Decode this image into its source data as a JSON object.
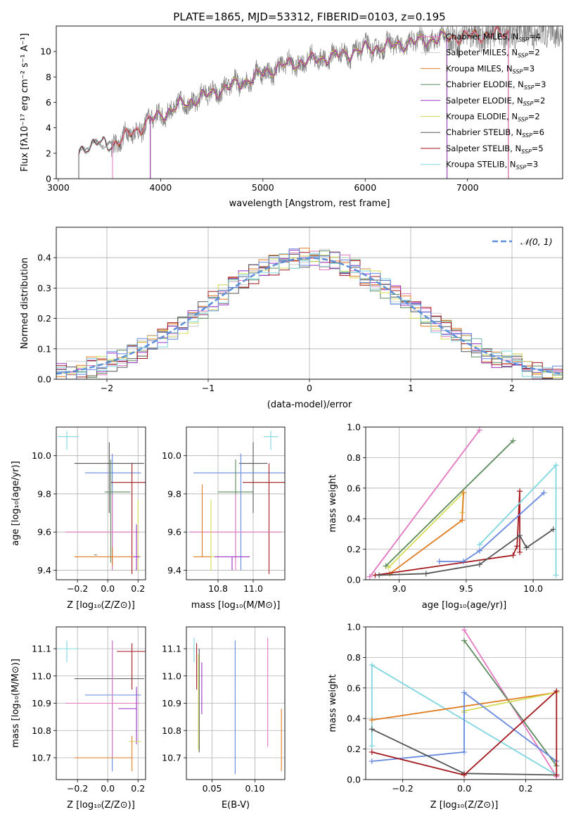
{
  "page_title": "PLATE=1865, MJD=53312, FIBERID=0103, z=0.195",
  "colors": {
    "chabrier_miles": "#e377c2",
    "salpeter_miles": "#cccccc",
    "kroupa_miles": "#e07b20",
    "chabrier_elodie": "#5b8a5b",
    "salpeter_elodie": "#9b30c8",
    "kroupa_elodie": "#d6dc55",
    "chabrier_stelib": "#555555",
    "salpeter_stelib": "#a3191e",
    "kroupa_stelib": "#7fd6df",
    "extra_blue": "#6688dd",
    "gaussian": "#5b8fd6",
    "data_grey": "#808080"
  },
  "chart_data": [
    {
      "id": "spectrum",
      "type": "line",
      "xlabel": "wavelength [Angstrom, rest frame]",
      "ylabel": "Flux [fλ10⁻¹⁷ erg cm⁻² s⁻¹ A⁻¹]",
      "xlim": [
        2980,
        7930
      ],
      "ylim": [
        0,
        12
      ],
      "xticks": [
        "3000",
        "4000",
        "5000",
        "6000",
        "7000"
      ],
      "yticks": [
        "0",
        "2",
        "4",
        "6",
        "8",
        "10"
      ],
      "legend_position": "top-right",
      "legend": [
        {
          "label": "Chabrier MILES, N",
          "sub": "SSP",
          "suffix": "=4",
          "color": "chabrier_miles"
        },
        {
          "label": "Salpeter MILES, N",
          "sub": "SSP",
          "suffix": "=2",
          "color": "salpeter_miles"
        },
        {
          "label": "Kroupa MILES, N",
          "sub": "SSP",
          "suffix": "=3",
          "color": "kroupa_miles"
        },
        {
          "label": "Chabrier ELODIE, N",
          "sub": "SSP",
          "suffix": "=3",
          "color": "chabrier_elodie"
        },
        {
          "label": "Salpeter ELODIE, N",
          "sub": "SSP",
          "suffix": "=2",
          "color": "salpeter_elodie"
        },
        {
          "label": "Kroupa ELODIE, N",
          "sub": "SSP",
          "suffix": "=2",
          "color": "kroupa_elodie"
        },
        {
          "label": "Chabrier STELIB, N",
          "sub": "SSP",
          "suffix": "=6",
          "color": "chabrier_stelib"
        },
        {
          "label": "Salpeter STELIB, N",
          "sub": "SSP",
          "suffix": "=5",
          "color": "salpeter_stelib"
        },
        {
          "label": "Kroupa STELIB, N",
          "sub": "SSP",
          "suffix": "=3",
          "color": "kroupa_stelib"
        }
      ],
      "continuum": {
        "x": [
          3200,
          3300,
          3400,
          3500,
          3600,
          3700,
          3800,
          3900,
          4000,
          4200,
          4400,
          4600,
          4800,
          5000,
          5200,
          5400,
          5600,
          5800,
          6000,
          6200,
          6400,
          6600,
          6800,
          7000,
          7200,
          7400
        ],
        "y": [
          2.0,
          2.7,
          2.8,
          2.6,
          3.0,
          3.5,
          4.0,
          4.6,
          5.0,
          5.8,
          6.4,
          7.0,
          7.6,
          8.3,
          8.9,
          9.2,
          9.5,
          9.8,
          10.2,
          10.4,
          10.6,
          10.9,
          11.1,
          11.2,
          11.3,
          11.5
        ]
      },
      "model_ranges": [
        {
          "color": "kroupa_stelib",
          "start": 3200,
          "end": 6800
        },
        {
          "color": "salpeter_stelib",
          "start": 3200,
          "end": 7400
        },
        {
          "color": "chabrier_stelib",
          "start": 3200,
          "end": 7400
        },
        {
          "color": "kroupa_miles",
          "start": 3530,
          "end": 7400
        },
        {
          "color": "chabrier_miles",
          "start": 3530,
          "end": 7400
        },
        {
          "color": "chabrier_elodie",
          "start": 3900,
          "end": 6800
        },
        {
          "color": "kroupa_elodie",
          "start": 3900,
          "end": 6800
        },
        {
          "color": "salpeter_elodie",
          "start": 3900,
          "end": 6800
        }
      ]
    },
    {
      "id": "residual_distribution",
      "type": "line",
      "xlabel": "(data-model)/error",
      "ylabel": "Normed distribution",
      "xlim": [
        -2.5,
        2.5
      ],
      "ylim": [
        0,
        0.5
      ],
      "xticks": [
        "−2",
        "−1",
        "0",
        "1",
        "2"
      ],
      "yticks": [
        "0.0",
        "0.1",
        "0.2",
        "0.3",
        "0.4"
      ],
      "legend_position": "top-right",
      "gaussian_label": "𝒩(0, 1)",
      "bin_width": 0.1
    },
    {
      "id": "age_vs_Z",
      "type": "scatter",
      "xlabel": "Z [log₁₀(Z/Z⊙)]",
      "ylabel": "age  [log₁₀(age/yr)]",
      "xlim": [
        -0.34,
        0.25
      ],
      "ylim": [
        9.35,
        10.15
      ],
      "xticks": [
        "−0.2",
        "0.0",
        "0.2"
      ],
      "yticks": [
        "9.4",
        "9.6",
        "9.8",
        "10.0"
      ],
      "points": [
        {
          "color": "kroupa_stelib",
          "x": -0.27,
          "xerr": [
            0.06,
            0.08
          ],
          "y": 10.1,
          "yerr": [
            0.07,
            0.03
          ]
        },
        {
          "color": "chabrier_stelib",
          "x": 0.01,
          "xerr": [
            0.23,
            0.23
          ],
          "y": 9.96,
          "yerr": [
            0.26,
            0.11
          ]
        },
        {
          "color": "extra_blue",
          "x": 0.03,
          "xerr": [
            0.18,
            0.19
          ],
          "y": 9.91,
          "yerr": [
            0.51,
            0.1
          ]
        },
        {
          "color": "salpeter_stelib",
          "x": 0.16,
          "xerr": [
            0.14,
            0.09
          ],
          "y": 9.86,
          "yerr": [
            0.48,
            0.1
          ]
        },
        {
          "color": "chabrier_elodie",
          "x": 0.02,
          "xerr": [
            0.04,
            0.13
          ],
          "y": 9.81,
          "yerr": [
            0.37,
            0.17
          ]
        },
        {
          "color": "chabrier_miles",
          "x": 0.03,
          "xerr": [
            0.31,
            0.18
          ],
          "y": 9.6,
          "yerr": [
            0.2,
            0.2
          ]
        },
        {
          "color": "kroupa_elodie",
          "x": 0.2,
          "xerr": [
            0.06,
            0.02
          ],
          "y": 9.47,
          "yerr": [
            0.07,
            0.3
          ]
        },
        {
          "color": "kroupa_miles",
          "x": 0.03,
          "xerr": [
            0.25,
            0.14
          ],
          "y": 9.47,
          "yerr": [
            0.05,
            0.05
          ]
        },
        {
          "color": "salpeter_elodie",
          "x": 0.19,
          "xerr": [
            0.02,
            0.02
          ],
          "y": 9.47,
          "yerr": [
            0.07,
            0.17
          ]
        },
        {
          "color": "data_grey",
          "x": -0.08,
          "xerr": [
            0.01,
            0.01
          ],
          "y": 9.48,
          "yerr": [
            0.0,
            0.0
          ]
        }
      ]
    },
    {
      "id": "age_vs_mass",
      "type": "scatter",
      "xlabel": "mass [log₁₀(M/M⊙)]",
      "ylabel": "",
      "xlim": [
        10.62,
        11.18
      ],
      "ylim": [
        9.35,
        10.15
      ],
      "xticks": [
        "10.8",
        "11.0"
      ],
      "yticks": [
        "9.4",
        "9.6",
        "9.8",
        "10.0"
      ],
      "points": [
        {
          "color": "kroupa_stelib",
          "x": 11.1,
          "xerr": [
            0.04,
            0.04
          ],
          "y": 10.1,
          "yerr": [
            0.07,
            0.03
          ]
        },
        {
          "color": "chabrier_stelib",
          "x": 11.0,
          "xerr": [
            0.08,
            0.08
          ],
          "y": 9.96,
          "yerr": [
            0.26,
            0.11
          ]
        },
        {
          "color": "extra_blue",
          "x": 10.93,
          "xerr": [
            0.27,
            0.27
          ],
          "y": 9.91,
          "yerr": [
            0.51,
            0.1
          ]
        },
        {
          "color": "salpeter_stelib",
          "x": 11.09,
          "xerr": [
            0.15,
            0.15
          ],
          "y": 9.86,
          "yerr": [
            0.48,
            0.1
          ]
        },
        {
          "color": "chabrier_elodie",
          "x": 10.9,
          "xerr": [
            0.1,
            0.1
          ],
          "y": 9.81,
          "yerr": [
            0.37,
            0.17
          ]
        },
        {
          "color": "chabrier_miles",
          "x": 10.9,
          "xerr": [
            0.26,
            0.26
          ],
          "y": 9.6,
          "yerr": [
            0.2,
            0.2
          ]
        },
        {
          "color": "kroupa_elodie",
          "x": 10.76,
          "xerr": [
            0.02,
            0.02
          ],
          "y": 9.47,
          "yerr": [
            0.07,
            0.3
          ]
        },
        {
          "color": "kroupa_miles",
          "x": 10.71,
          "xerr": [
            0.05,
            0.05
          ],
          "y": 9.47,
          "yerr": [
            0.0,
            0.38
          ]
        },
        {
          "color": "salpeter_elodie",
          "x": 10.88,
          "xerr": [
            0.1,
            0.1
          ],
          "y": 9.47,
          "yerr": [
            0.07,
            0.0
          ]
        }
      ]
    },
    {
      "id": "weight_vs_age",
      "type": "line",
      "xlabel": "age  [log₁₀(age/yr)]",
      "ylabel": "mass weight",
      "xlim": [
        8.75,
        10.22
      ],
      "ylim": [
        0,
        1
      ],
      "xticks": [
        "9.0",
        "9.5",
        "10.0"
      ],
      "yticks": [
        "0.0",
        "0.2",
        "0.4",
        "0.6",
        "0.8",
        "1.0"
      ],
      "series": [
        {
          "color": "chabrier_miles",
          "x": [
            8.78,
            9.6
          ],
          "y": [
            0.02,
            0.98
          ]
        },
        {
          "color": "chabrier_elodie",
          "x": [
            8.9,
            9.85
          ],
          "y": [
            0.09,
            0.91
          ]
        },
        {
          "color": "kroupa_elodie",
          "x": [
            8.92,
            9.48,
            9.47
          ],
          "y": [
            0.08,
            0.57,
            0.44
          ]
        },
        {
          "color": "kroupa_miles",
          "x": [
            8.93,
            9.47,
            9.48
          ],
          "y": [
            0.04,
            0.39,
            0.57
          ]
        },
        {
          "color": "salpeter_stelib",
          "x": [
            8.82,
            9.85,
            9.88,
            9.9,
            9.9
          ],
          "y": [
            0.03,
            0.16,
            0.22,
            0.58,
            0.18
          ]
        },
        {
          "color": "chabrier_stelib",
          "x": [
            8.85,
            9.2,
            9.6,
            9.9,
            9.95,
            10.15
          ],
          "y": [
            0.03,
            0.04,
            0.1,
            0.29,
            0.21,
            0.33
          ]
        },
        {
          "color": "extra_blue",
          "x": [
            9.3,
            9.48,
            9.6,
            10.08
          ],
          "y": [
            0.12,
            0.12,
            0.19,
            0.57
          ]
        },
        {
          "color": "kroupa_stelib",
          "x": [
            9.6,
            10.17,
            10.17
          ],
          "y": [
            0.23,
            0.75,
            0.03
          ]
        }
      ]
    },
    {
      "id": "mass_vs_Z",
      "type": "scatter",
      "xlabel": "Z [log₁₀(Z/Z⊙)]",
      "ylabel": "mass [log₁₀(M/M⊙)]",
      "xlim": [
        -0.34,
        0.25
      ],
      "ylim": [
        10.62,
        11.18
      ],
      "xticks": [
        "−0.2",
        "0.0",
        "0.2"
      ],
      "yticks": [
        "10.7",
        "10.8",
        "10.9",
        "11.0",
        "11.1"
      ],
      "points": [
        {
          "color": "kroupa_stelib",
          "x": -0.27,
          "xerr": [
            0.06,
            0.08
          ],
          "y": 11.1,
          "yerr": [
            0.05,
            0.03
          ]
        },
        {
          "color": "salpeter_stelib",
          "x": 0.16,
          "xerr": [
            0.1,
            0.09
          ],
          "y": 11.09,
          "yerr": [
            0.14,
            0.03
          ]
        },
        {
          "color": "chabrier_stelib",
          "x": 0.01,
          "xerr": [
            0.23,
            0.23
          ],
          "y": 10.99,
          "yerr": [
            0.0,
            0.0
          ]
        },
        {
          "color": "extra_blue",
          "x": 0.03,
          "xerr": [
            0.18,
            0.19
          ],
          "y": 10.93,
          "yerr": [
            0.28,
            0.2
          ]
        },
        {
          "color": "chabrier_elodie",
          "x": 0.02,
          "xerr": [
            0.04,
            0.13
          ],
          "y": 10.9,
          "yerr": [
            0.0,
            0.0
          ]
        },
        {
          "color": "chabrier_miles",
          "x": 0.03,
          "xerr": [
            0.31,
            0.18
          ],
          "y": 10.9,
          "yerr": [
            0.2,
            0.23
          ]
        },
        {
          "color": "salpeter_elodie",
          "x": 0.19,
          "xerr": [
            0.12,
            0.0
          ],
          "y": 10.88,
          "yerr": [
            0.13,
            0.08
          ]
        },
        {
          "color": "kroupa_elodie",
          "x": 0.2,
          "xerr": [
            0.06,
            0.02
          ],
          "y": 10.76,
          "yerr": [
            0.0,
            0.0
          ]
        },
        {
          "color": "kroupa_miles",
          "x": 0.16,
          "xerr": [
            0.38,
            0.0
          ],
          "y": 10.7,
          "yerr": [
            0.05,
            0.08
          ]
        }
      ]
    },
    {
      "id": "mass_vs_ebv",
      "type": "scatter",
      "xlabel": "E(B-V)",
      "ylabel": "",
      "xlim": [
        0.02,
        0.135
      ],
      "ylim": [
        10.62,
        11.18
      ],
      "xticks": [
        "0.05",
        "0.10"
      ],
      "yticks": [
        "10.7",
        "10.8",
        "10.9",
        "11.0",
        "11.1"
      ],
      "points": [
        {
          "color": "kroupa_stelib",
          "x": 0.029,
          "yerr_range": [
            11.05,
            11.14
          ]
        },
        {
          "color": "salpeter_stelib",
          "x": 0.032,
          "yerr_range": [
            10.95,
            11.12
          ]
        },
        {
          "color": "chabrier_stelib",
          "x": 0.035,
          "yerr_range": [
            10.72,
            11.1
          ]
        },
        {
          "color": "kroupa_elodie",
          "x": 0.034,
          "yerr_range": [
            10.73,
            11.08
          ]
        },
        {
          "color": "salpeter_elodie",
          "x": 0.038,
          "yerr_range": [
            10.86,
            11.05
          ]
        },
        {
          "color": "extra_blue",
          "x": 0.077,
          "yerr_range": [
            10.64,
            11.13
          ]
        },
        {
          "color": "chabrier_miles",
          "x": 0.115,
          "yerr_range": [
            10.74,
            11.14
          ]
        },
        {
          "color": "kroupa_miles",
          "x": 0.131,
          "yerr_range": [
            10.65,
            10.88
          ]
        }
      ]
    },
    {
      "id": "weight_vs_Z",
      "type": "line",
      "xlabel": "Z [log₁₀(Z/Z⊙)]",
      "ylabel": "mass weight",
      "xlim": [
        -0.32,
        0.32
      ],
      "ylim": [
        0,
        1
      ],
      "xticks": [
        "−0.2",
        "0.0",
        "0.2"
      ],
      "yticks": [
        "0.0",
        "0.2",
        "0.4",
        "0.6",
        "0.8",
        "1.0"
      ],
      "series": [
        {
          "color": "chabrier_miles",
          "x": [
            0.0,
            0.3
          ],
          "y": [
            0.98,
            0.02
          ]
        },
        {
          "color": "chabrier_elodie",
          "x": [
            0.0,
            0.3
          ],
          "y": [
            0.91,
            0.09
          ]
        },
        {
          "color": "kroupa_stelib",
          "x": [
            -0.3,
            -0.3,
            0.3
          ],
          "y": [
            0.22,
            0.75,
            0.03
          ]
        },
        {
          "color": "kroupa_miles",
          "x": [
            -0.3,
            0.3
          ],
          "y": [
            0.39,
            0.57
          ]
        },
        {
          "color": "kroupa_elodie",
          "x": [
            0.0,
            0.0,
            0.3
          ],
          "y": [
            0.44,
            0.45,
            0.57
          ]
        },
        {
          "color": "extra_blue",
          "x": [
            -0.3,
            0.0,
            0.0,
            0.3
          ],
          "y": [
            0.12,
            0.18,
            0.57,
            0.12
          ]
        },
        {
          "color": "chabrier_stelib",
          "x": [
            -0.3,
            0.0,
            0.3
          ],
          "y": [
            0.33,
            0.04,
            0.03
          ]
        },
        {
          "color": "salpeter_stelib",
          "x": [
            -0.3,
            0.0,
            0.3,
            0.3
          ],
          "y": [
            0.18,
            0.03,
            0.58,
            0.03
          ]
        }
      ]
    }
  ]
}
